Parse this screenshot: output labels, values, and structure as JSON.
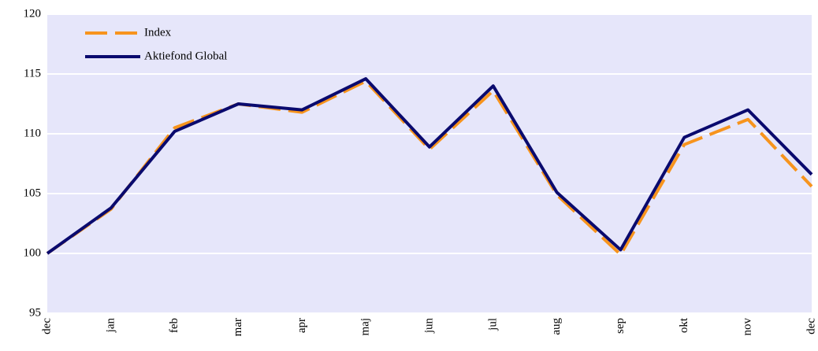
{
  "chart_data": {
    "type": "line",
    "categories": [
      "dec",
      "jan",
      "feb",
      "mar",
      "apr",
      "maj",
      "jun",
      "jul",
      "aug",
      "sep",
      "okt",
      "nov",
      "dec"
    ],
    "series": [
      {
        "name": "Index",
        "color": "#f7941d",
        "dashed": true,
        "values": [
          100,
          103.7,
          110.5,
          112.5,
          111.8,
          114.4,
          108.7,
          113.6,
          104.9,
          99.9,
          109.1,
          111.2,
          105.6
        ]
      },
      {
        "name": "Aktiefond Global",
        "color": "#0a0a6e",
        "dashed": false,
        "values": [
          100,
          103.8,
          110.2,
          112.5,
          112.0,
          114.6,
          108.9,
          114.0,
          105.1,
          100.3,
          109.7,
          112.0,
          106.6
        ]
      }
    ],
    "ylim": [
      95,
      120
    ],
    "yticks": [
      95,
      100,
      105,
      110,
      115,
      120
    ],
    "grid": true,
    "legend": "top-left"
  }
}
